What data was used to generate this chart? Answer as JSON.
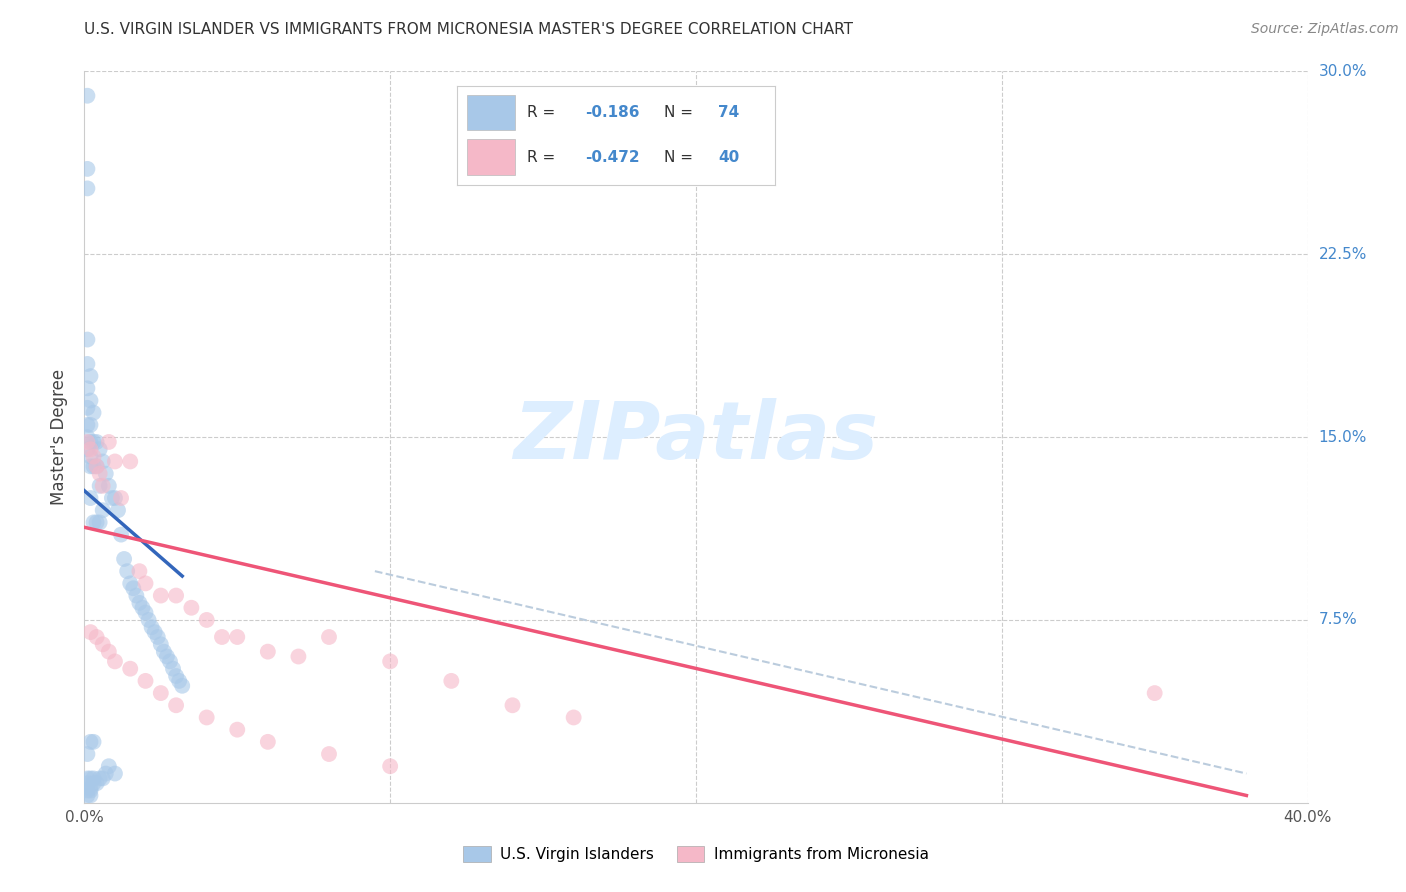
{
  "title": "U.S. VIRGIN ISLANDER VS IMMIGRANTS FROM MICRONESIA MASTER'S DEGREE CORRELATION CHART",
  "source": "Source: ZipAtlas.com",
  "ylabel": "Master's Degree",
  "xlim": [
    0.0,
    0.4
  ],
  "ylim": [
    0.0,
    0.3
  ],
  "blue_R": -0.186,
  "blue_N": 74,
  "pink_R": -0.472,
  "pink_N": 40,
  "blue_color": "#a8c8e8",
  "pink_color": "#f5b8c8",
  "blue_line_color": "#3366bb",
  "pink_line_color": "#ee5577",
  "dash_color": "#bbccdd",
  "watermark_color": "#ddeeff",
  "blue_line_x": [
    0.0,
    0.032
  ],
  "blue_line_y": [
    0.128,
    0.093
  ],
  "pink_line_x": [
    0.0,
    0.38
  ],
  "pink_line_y": [
    0.113,
    0.003
  ],
  "dash_line_x": [
    0.095,
    0.38
  ],
  "dash_line_y": [
    0.095,
    0.012
  ],
  "blue_x": [
    0.001,
    0.001,
    0.001,
    0.001,
    0.001,
    0.001,
    0.001,
    0.001,
    0.001,
    0.001,
    0.001,
    0.001,
    0.002,
    0.002,
    0.002,
    0.002,
    0.002,
    0.002,
    0.002,
    0.002,
    0.002,
    0.003,
    0.003,
    0.003,
    0.003,
    0.003,
    0.004,
    0.004,
    0.004,
    0.004,
    0.005,
    0.005,
    0.005,
    0.005,
    0.006,
    0.006,
    0.006,
    0.007,
    0.007,
    0.008,
    0.008,
    0.009,
    0.01,
    0.01,
    0.011,
    0.012,
    0.013,
    0.014,
    0.015,
    0.016,
    0.017,
    0.018,
    0.019,
    0.02,
    0.021,
    0.022,
    0.023,
    0.024,
    0.025,
    0.026,
    0.027,
    0.028,
    0.029,
    0.03,
    0.031,
    0.032,
    0.001,
    0.002,
    0.003,
    0.001,
    0.002,
    0.001,
    0.003,
    0.002
  ],
  "blue_y": [
    0.29,
    0.26,
    0.252,
    0.19,
    0.18,
    0.17,
    0.162,
    0.155,
    0.15,
    0.145,
    0.01,
    0.005,
    0.175,
    0.165,
    0.155,
    0.148,
    0.142,
    0.138,
    0.125,
    0.01,
    0.005,
    0.16,
    0.148,
    0.138,
    0.115,
    0.01,
    0.148,
    0.138,
    0.115,
    0.008,
    0.145,
    0.13,
    0.115,
    0.01,
    0.14,
    0.12,
    0.01,
    0.135,
    0.012,
    0.13,
    0.015,
    0.125,
    0.125,
    0.012,
    0.12,
    0.11,
    0.1,
    0.095,
    0.09,
    0.088,
    0.085,
    0.082,
    0.08,
    0.078,
    0.075,
    0.072,
    0.07,
    0.068,
    0.065,
    0.062,
    0.06,
    0.058,
    0.055,
    0.052,
    0.05,
    0.048,
    0.003,
    0.003,
    0.008,
    0.008,
    0.006,
    0.02,
    0.025,
    0.025
  ],
  "pink_x": [
    0.001,
    0.002,
    0.003,
    0.004,
    0.005,
    0.006,
    0.008,
    0.01,
    0.012,
    0.015,
    0.018,
    0.02,
    0.025,
    0.03,
    0.035,
    0.04,
    0.045,
    0.05,
    0.06,
    0.07,
    0.08,
    0.1,
    0.12,
    0.14,
    0.16,
    0.35,
    0.002,
    0.004,
    0.006,
    0.008,
    0.01,
    0.015,
    0.02,
    0.025,
    0.03,
    0.04,
    0.05,
    0.06,
    0.08,
    0.1
  ],
  "pink_y": [
    0.148,
    0.145,
    0.142,
    0.138,
    0.135,
    0.13,
    0.148,
    0.14,
    0.125,
    0.14,
    0.095,
    0.09,
    0.085,
    0.085,
    0.08,
    0.075,
    0.068,
    0.068,
    0.062,
    0.06,
    0.068,
    0.058,
    0.05,
    0.04,
    0.035,
    0.045,
    0.07,
    0.068,
    0.065,
    0.062,
    0.058,
    0.055,
    0.05,
    0.045,
    0.04,
    0.035,
    0.03,
    0.025,
    0.02,
    0.015
  ]
}
